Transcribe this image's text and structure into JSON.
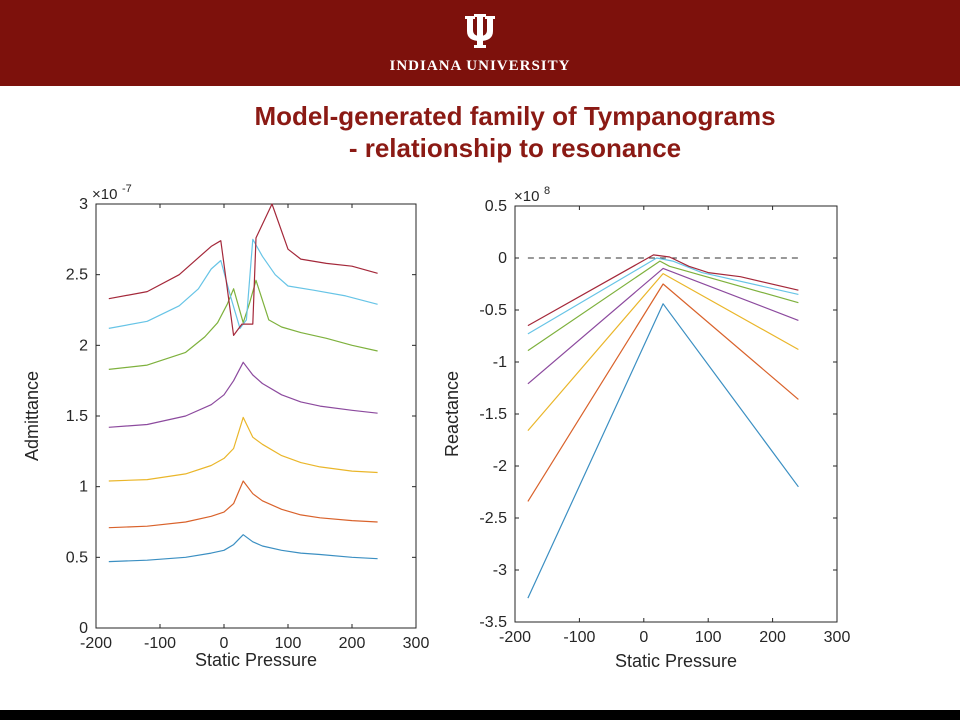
{
  "header": {
    "logo": "Ψ",
    "university": "INDIANA UNIVERSITY"
  },
  "title": {
    "line1": "Model-generated family of Tympanograms",
    "line2": "- relationship to resonance"
  },
  "colors": {
    "header_bg": "#7d110c",
    "title_text": "#8b1a14",
    "series": [
      "#3b8fc2",
      "#d9622b",
      "#eab62a",
      "#8c4a9e",
      "#7eb13d",
      "#67c4e6",
      "#a4283a"
    ]
  },
  "chart_data": [
    {
      "type": "line",
      "xlabel": "Static Pressure",
      "ylabel": "Admittance",
      "exponent": "×10",
      "exponent_power": "-7",
      "xlim": [
        -200,
        300
      ],
      "ylim": [
        0,
        3
      ],
      "xticks": [
        -200,
        -100,
        0,
        100,
        200,
        300
      ],
      "yticks": [
        0,
        0.5,
        1,
        1.5,
        2,
        2.5,
        3
      ],
      "xtick_labels": [
        "-200",
        "-100",
        "0",
        "100",
        "200",
        "300"
      ],
      "ytick_labels": [
        "0",
        "0.5",
        "1",
        "1.5",
        "2",
        "2.5",
        "3"
      ],
      "series": [
        {
          "x": [
            -180,
            -120,
            -60,
            -20,
            0,
            15,
            30,
            45,
            60,
            90,
            120,
            150,
            200,
            240
          ],
          "y": [
            0.47,
            0.48,
            0.5,
            0.53,
            0.55,
            0.59,
            0.66,
            0.61,
            0.58,
            0.55,
            0.53,
            0.52,
            0.5,
            0.49
          ]
        },
        {
          "x": [
            -180,
            -120,
            -60,
            -20,
            0,
            15,
            30,
            45,
            60,
            90,
            120,
            150,
            200,
            240
          ],
          "y": [
            0.71,
            0.72,
            0.75,
            0.79,
            0.82,
            0.88,
            1.04,
            0.95,
            0.9,
            0.84,
            0.8,
            0.78,
            0.76,
            0.75
          ]
        },
        {
          "x": [
            -180,
            -120,
            -60,
            -20,
            0,
            15,
            30,
            45,
            60,
            90,
            120,
            150,
            200,
            240
          ],
          "y": [
            1.04,
            1.05,
            1.09,
            1.15,
            1.2,
            1.27,
            1.49,
            1.35,
            1.3,
            1.22,
            1.17,
            1.14,
            1.11,
            1.1
          ]
        },
        {
          "x": [
            -180,
            -120,
            -60,
            -20,
            0,
            15,
            30,
            45,
            60,
            90,
            120,
            150,
            200,
            240
          ],
          "y": [
            1.42,
            1.44,
            1.5,
            1.58,
            1.65,
            1.75,
            1.88,
            1.79,
            1.73,
            1.65,
            1.6,
            1.57,
            1.54,
            1.52
          ]
        },
        {
          "x": [
            -180,
            -120,
            -60,
            -30,
            -10,
            5,
            15,
            30,
            40,
            50,
            70,
            90,
            120,
            160,
            200,
            240
          ],
          "y": [
            1.83,
            1.86,
            1.95,
            2.06,
            2.16,
            2.29,
            2.4,
            2.16,
            2.3,
            2.46,
            2.18,
            2.13,
            2.09,
            2.05,
            2.0,
            1.96
          ]
        },
        {
          "x": [
            -180,
            -120,
            -70,
            -40,
            -20,
            -5,
            10,
            25,
            35,
            45,
            60,
            80,
            100,
            140,
            190,
            240
          ],
          "y": [
            2.12,
            2.17,
            2.28,
            2.4,
            2.54,
            2.6,
            2.35,
            2.12,
            2.18,
            2.75,
            2.63,
            2.5,
            2.42,
            2.39,
            2.35,
            2.29
          ]
        },
        {
          "x": [
            -180,
            -120,
            -70,
            -40,
            -20,
            -5,
            15,
            28,
            45,
            50,
            75,
            100,
            120,
            160,
            200,
            240
          ],
          "y": [
            2.33,
            2.38,
            2.5,
            2.62,
            2.7,
            2.74,
            2.07,
            2.15,
            2.15,
            2.76,
            3.0,
            2.68,
            2.61,
            2.58,
            2.56,
            2.51
          ]
        }
      ]
    },
    {
      "type": "line",
      "xlabel": "Static Pressure",
      "ylabel": "Reactance",
      "exponent": "×10",
      "exponent_power": "8",
      "xlim": [
        -200,
        300
      ],
      "ylim": [
        -3.5,
        0.5
      ],
      "xticks": [
        -200,
        -100,
        0,
        100,
        200,
        300
      ],
      "yticks": [
        -3.5,
        -3,
        -2.5,
        -2,
        -1.5,
        -1,
        -0.5,
        0,
        0.5
      ],
      "xtick_labels": [
        "-200",
        "-100",
        "0",
        "100",
        "200",
        "300"
      ],
      "ytick_labels": [
        "-3.5",
        "-3",
        "-2.5",
        "-2",
        "-1.5",
        "-1",
        "-0.5",
        "0",
        "0.5"
      ],
      "reference_line": 0,
      "series": [
        {
          "x": [
            -180,
            30,
            240
          ],
          "y": [
            -3.27,
            -0.44,
            -2.2
          ]
        },
        {
          "x": [
            -180,
            30,
            240
          ],
          "y": [
            -2.34,
            -0.25,
            -1.36
          ]
        },
        {
          "x": [
            -180,
            30,
            240
          ],
          "y": [
            -1.66,
            -0.15,
            -0.88
          ]
        },
        {
          "x": [
            -180,
            30,
            240
          ],
          "y": [
            -1.21,
            -0.1,
            -0.6
          ]
        },
        {
          "x": [
            -180,
            25,
            40,
            240
          ],
          "y": [
            -0.89,
            -0.03,
            -0.08,
            -0.43
          ]
        },
        {
          "x": [
            -180,
            20,
            45,
            90,
            240
          ],
          "y": [
            -0.73,
            0.0,
            -0.03,
            -0.14,
            -0.35
          ]
        },
        {
          "x": [
            -180,
            15,
            40,
            70,
            100,
            150,
            240
          ],
          "y": [
            -0.65,
            0.03,
            0.01,
            -0.08,
            -0.14,
            -0.18,
            -0.31
          ]
        }
      ]
    }
  ]
}
